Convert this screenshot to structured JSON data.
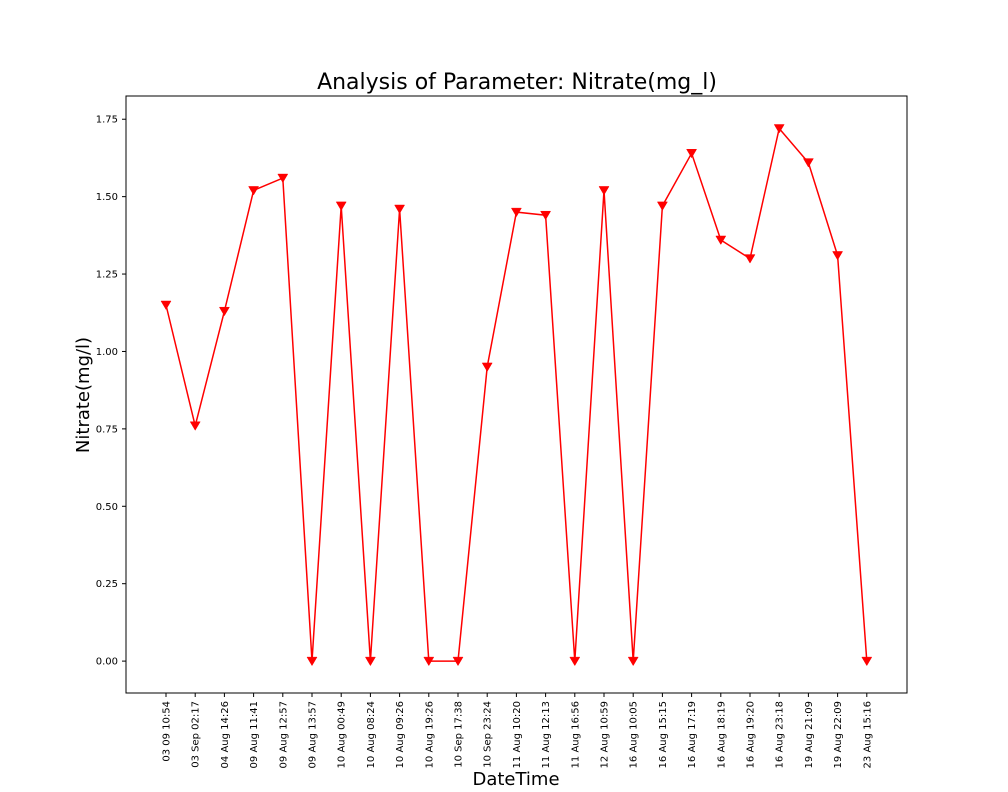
{
  "chart_data": {
    "type": "line",
    "title": "Analysis of Parameter: Nitrate(mg_l)",
    "xlabel": "DateTime",
    "ylabel": "Nitrate(mg/l)",
    "categories": [
      "03 09 10:54",
      "03 Sep 02:17",
      "04 Aug 14:26",
      "09 Aug 11:41",
      "09 Aug 12:57",
      "09 Aug 13:57",
      "10 Aug 00:49",
      "10 Aug 08:24",
      "10 Aug 09:26",
      "10 Aug 19:26",
      "10 Sep 17:38",
      "10 Sep 23:24",
      "11 Aug 10:20",
      "11 Aug 12:13",
      "11 Aug 16:56",
      "12 Aug 10:59",
      "16 Aug 10:05",
      "16 Aug 15:15",
      "16 Aug 17:19",
      "16 Aug 18:19",
      "16 Aug 19:20",
      "16 Aug 23:18",
      "19 Aug 21:09",
      "19 Aug 22:09",
      "23 Aug 15:16"
    ],
    "series": [
      {
        "values": [
          1.15,
          0.76,
          1.13,
          1.52,
          1.56,
          0.0,
          1.47,
          0.0,
          1.46,
          0.0,
          0.0,
          0.95,
          1.45,
          1.44,
          0.0,
          1.52,
          0.0,
          1.47,
          1.64,
          1.36,
          1.3,
          1.72,
          1.61,
          1.31,
          0.0
        ],
        "color": "#ff0000",
        "marker": "triangle-down"
      }
    ],
    "yticks": [
      "0.00",
      "0.25",
      "0.50",
      "0.75",
      "1.00",
      "1.25",
      "1.50",
      "1.75"
    ],
    "ylim": [
      -0.103,
      1.825
    ],
    "grid": false
  }
}
